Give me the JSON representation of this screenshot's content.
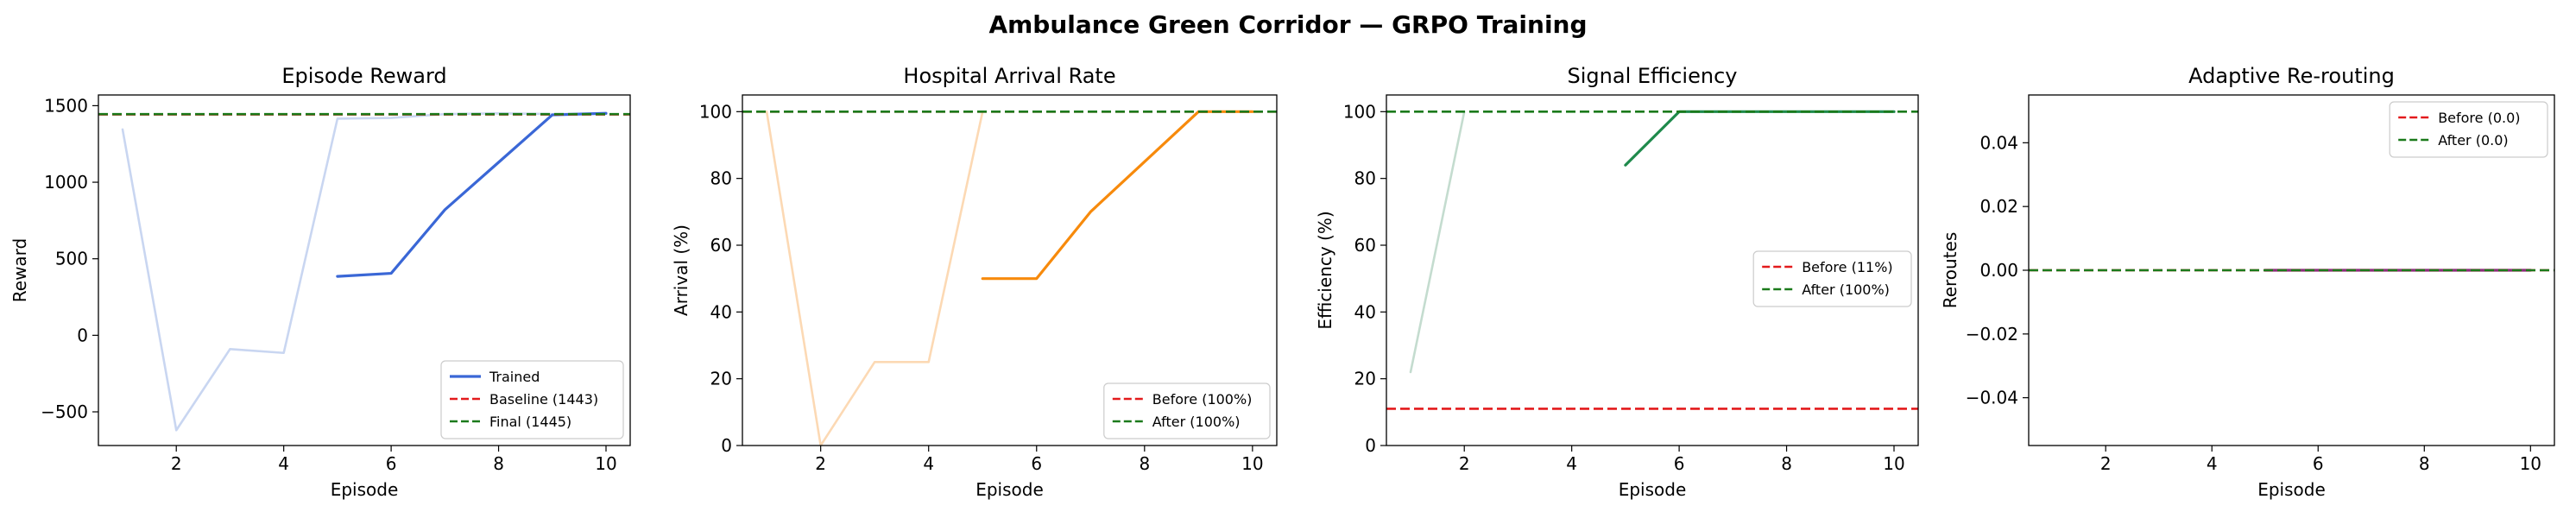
{
  "figure": {
    "title": "Ambulance Green Corridor — GRPO Training"
  },
  "chart_data": [
    {
      "type": "line",
      "title": "Episode Reward",
      "xlabel": "Episode",
      "ylabel": "Reward",
      "xlim": [
        0.55,
        10.45
      ],
      "ylim": [
        -720,
        1570
      ],
      "xticks": [
        2,
        4,
        6,
        8,
        10
      ],
      "yticks": [
        -500,
        0,
        500,
        1000,
        1500
      ],
      "grid": false,
      "legend_position": "lower right",
      "series": [
        {
          "name": "Trained",
          "color": "#3a67d6",
          "style": "solid",
          "width": 3.2,
          "x": [
            5,
            6,
            7,
            8,
            9,
            10
          ],
          "y": [
            385,
            405,
            820,
            1130,
            1440,
            1450
          ]
        },
        {
          "name": "",
          "color": "#c9d6f1",
          "style": "solid",
          "width": 2.6,
          "x": [
            1,
            2,
            3,
            4,
            5,
            6,
            7,
            8,
            9,
            10
          ],
          "y": [
            1345,
            -620,
            -90,
            -115,
            1415,
            1420,
            1445,
            1450,
            1445,
            1450
          ]
        }
      ],
      "hlines": [
        {
          "name": "Baseline (1443)",
          "y": 1443,
          "color": "#e31a1c"
        },
        {
          "name": "Final (1445)",
          "y": 1445,
          "color": "#1b7a1b"
        }
      ]
    },
    {
      "type": "line",
      "title": "Hospital Arrival Rate",
      "xlabel": "Episode",
      "ylabel": "Arrival (%)",
      "xlim": [
        0.55,
        10.45
      ],
      "ylim": [
        0,
        105
      ],
      "xticks": [
        2,
        4,
        6,
        8,
        10
      ],
      "yticks": [
        0,
        20,
        40,
        60,
        80,
        100
      ],
      "grid": false,
      "legend_position": "lower right",
      "series": [
        {
          "name": "",
          "color": "#f78a0c",
          "style": "solid",
          "width": 3.2,
          "x": [
            5,
            6,
            7,
            8,
            9,
            10
          ],
          "y": [
            50,
            50,
            70,
            85,
            100,
            100
          ]
        },
        {
          "name": "",
          "color": "#fcd9b4",
          "style": "solid",
          "width": 2.6,
          "x": [
            1,
            2,
            3,
            4,
            5
          ],
          "y": [
            100,
            0,
            25,
            25,
            100
          ]
        }
      ],
      "hlines": [
        {
          "name": "Before (100%)",
          "y": 100,
          "color": "#e31a1c"
        },
        {
          "name": "After (100%)",
          "y": 100,
          "color": "#1b7a1b"
        }
      ]
    },
    {
      "type": "line",
      "title": "Signal Efficiency",
      "xlabel": "Episode",
      "ylabel": "Efficiency (%)",
      "xlim": [
        0.55,
        10.45
      ],
      "ylim": [
        0,
        105
      ],
      "xticks": [
        2,
        4,
        6,
        8,
        10
      ],
      "yticks": [
        0,
        20,
        40,
        60,
        80,
        100
      ],
      "grid": false,
      "legend_position": "center right",
      "series": [
        {
          "name": "",
          "color": "#1f8a4c",
          "style": "solid",
          "width": 3.2,
          "x": [
            5,
            6,
            7,
            8,
            9,
            10
          ],
          "y": [
            84,
            100,
            100,
            100,
            100,
            100
          ]
        },
        {
          "name": "",
          "color": "#c4dccf",
          "style": "solid",
          "width": 2.6,
          "x": [
            1,
            2
          ],
          "y": [
            22,
            100
          ]
        }
      ],
      "hlines": [
        {
          "name": "Before (11%)",
          "y": 11,
          "color": "#e31a1c"
        },
        {
          "name": "After (100%)",
          "y": 100,
          "color": "#1b7a1b"
        }
      ]
    },
    {
      "type": "line",
      "title": "Adaptive Re-routing",
      "xlabel": "Episode",
      "ylabel": "Reroutes",
      "xlim": [
        0.55,
        10.45
      ],
      "ylim": [
        -0.055,
        0.055
      ],
      "xticks": [
        2,
        4,
        6,
        8,
        10
      ],
      "yticks": [
        -0.04,
        -0.02,
        0.0,
        0.02,
        0.04
      ],
      "ytick_labels": [
        "−0.04",
        "−0.02",
        "0.00",
        "0.02",
        "0.04"
      ],
      "grid": false,
      "legend_position": "upper right",
      "series": [
        {
          "name": "",
          "color": "#8c2d7a",
          "style": "solid",
          "width": 3.2,
          "x": [
            5,
            6,
            7,
            8,
            9,
            10
          ],
          "y": [
            0,
            0,
            0,
            0,
            0,
            0
          ]
        }
      ],
      "hlines": [
        {
          "name": "Before (0.0)",
          "y": 0,
          "color": "#e31a1c"
        },
        {
          "name": "After (0.0)",
          "y": 0,
          "color": "#1b7a1b"
        }
      ]
    }
  ]
}
